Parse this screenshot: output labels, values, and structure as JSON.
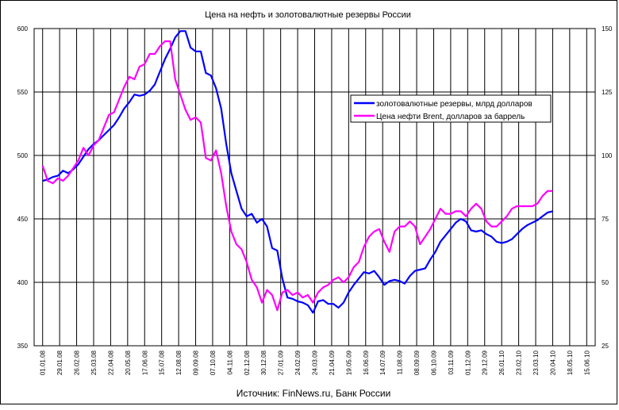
{
  "chart_data": {
    "type": "line",
    "title": "Цена на нефть и золотовалютные резервы России",
    "source": "Источник: FinNews.ru, Банк России",
    "x_labels": [
      "01.01.08",
      "29.01.08",
      "26.02.08",
      "25.03.08",
      "22.04.08",
      "20.05.08",
      "17.06.08",
      "15.07.08",
      "12.08.08",
      "09.09.08",
      "07.10.08",
      "04.11.08",
      "02.12.08",
      "30.12.08",
      "27.01.09",
      "24.02.09",
      "24.03.09",
      "21.04.09",
      "19.05.09",
      "16.06.09",
      "14.07.09",
      "11.08.09",
      "08.09.09",
      "06.10.09",
      "03.11.09",
      "01.12.09",
      "29.12.09",
      "26.01.10",
      "23.02.10",
      "23.03.10",
      "20.04.10",
      "18.05.10",
      "15.06.10"
    ],
    "ylim_left": [
      350,
      600
    ],
    "yticks_left": [
      350,
      400,
      450,
      500,
      550,
      600
    ],
    "ylim_right": [
      25,
      150
    ],
    "yticks_right": [
      25,
      50,
      75,
      100,
      125,
      150
    ],
    "grid": true,
    "legend_position": "right",
    "series": [
      {
        "name": "золотовалютные резервы, млрд долларов",
        "color": "#0000ff",
        "axis": "left",
        "x": [
          0,
          0.3,
          0.6,
          0.9,
          1.2,
          1.5,
          1.8,
          2.1,
          2.4,
          2.7,
          3.0,
          3.3,
          3.6,
          3.9,
          4.2,
          4.5,
          4.8,
          5.1,
          5.4,
          5.7,
          6.0,
          6.3,
          6.6,
          6.9,
          7.2,
          7.5,
          7.8,
          8.1,
          8.4,
          8.7,
          9.0,
          9.3,
          9.6,
          9.9,
          10.2,
          10.5,
          10.8,
          11.1,
          11.4,
          11.7,
          12.0,
          12.3,
          12.6,
          12.9,
          13.2,
          13.5,
          13.8,
          14.1,
          14.4,
          14.7,
          15.0,
          15.3,
          15.6,
          15.9,
          16.2,
          16.5,
          16.8,
          17.1,
          17.4,
          17.7,
          18.0,
          18.3,
          18.6,
          18.9,
          19.2,
          19.5,
          19.8,
          20.1,
          20.4,
          20.7,
          21.0,
          21.3,
          21.6,
          21.9,
          22.2,
          22.5,
          22.8,
          23.1,
          23.4,
          23.7,
          24.0,
          24.3,
          24.6,
          24.9,
          25.2,
          25.5,
          25.8,
          26.1,
          26.4,
          26.7,
          27.0,
          27.3,
          27.6,
          27.9,
          28.2,
          28.5,
          28.8,
          29.1,
          29.4,
          29.7,
          30.0
        ],
        "values": [
          480,
          481,
          483,
          484,
          488,
          486,
          489,
          493,
          499,
          505,
          509,
          512,
          516,
          520,
          524,
          530,
          537,
          542,
          548,
          547,
          548,
          551,
          556,
          566,
          576,
          584,
          593,
          598,
          598,
          585,
          582,
          582,
          565,
          563,
          553,
          537,
          509,
          486,
          472,
          458,
          452,
          454,
          447,
          450,
          444,
          427,
          425,
          403,
          388,
          387,
          385,
          384,
          382,
          376,
          385,
          386,
          383,
          383,
          380,
          384,
          392,
          398,
          403,
          408,
          407,
          409,
          404,
          398,
          401,
          402,
          401,
          399,
          405,
          409,
          410,
          411,
          418,
          424,
          432,
          437,
          442,
          447,
          450,
          448,
          441,
          440,
          441,
          438,
          436,
          432,
          431,
          432,
          434,
          438,
          442,
          445,
          447,
          449,
          452,
          455,
          456
        ]
      },
      {
        "name": "Цена нефти Brent, долларов за баррель",
        "color": "#ff00ff",
        "axis": "right",
        "x": [
          0,
          0.3,
          0.6,
          0.9,
          1.2,
          1.5,
          1.8,
          2.1,
          2.4,
          2.7,
          3.0,
          3.3,
          3.6,
          3.9,
          4.2,
          4.5,
          4.8,
          5.1,
          5.4,
          5.7,
          6.0,
          6.3,
          6.6,
          6.9,
          7.2,
          7.5,
          7.8,
          8.1,
          8.4,
          8.7,
          9.0,
          9.3,
          9.6,
          9.9,
          10.2,
          10.5,
          10.8,
          11.1,
          11.4,
          11.7,
          12.0,
          12.3,
          12.6,
          12.9,
          13.2,
          13.5,
          13.8,
          14.1,
          14.4,
          14.7,
          15.0,
          15.3,
          15.6,
          15.9,
          16.2,
          16.5,
          16.8,
          17.1,
          17.4,
          17.7,
          18.0,
          18.3,
          18.6,
          18.9,
          19.2,
          19.5,
          19.8,
          20.1,
          20.4,
          20.7,
          21.0,
          21.3,
          21.6,
          21.9,
          22.2,
          22.5,
          22.8,
          23.1,
          23.4,
          23.7,
          24.0,
          24.3,
          24.6,
          24.9,
          25.2,
          25.5,
          25.8,
          26.1,
          26.4,
          26.7,
          27.0,
          27.3,
          27.6,
          27.9,
          28.2,
          28.5,
          28.8,
          29.1,
          29.4,
          29.7,
          30.0
        ],
        "values": [
          96,
          90,
          89,
          91,
          90,
          92,
          95,
          98,
          103,
          100,
          104,
          106,
          111,
          116,
          117,
          122,
          127,
          131,
          130,
          135,
          136,
          140,
          140,
          143,
          145,
          145,
          130,
          124,
          118,
          114,
          115,
          113,
          99,
          98,
          102,
          93,
          80,
          70,
          65,
          63,
          58,
          51,
          48,
          42,
          47,
          45,
          39,
          46,
          47,
          45,
          46,
          44,
          45,
          42,
          46,
          48,
          49,
          51,
          52,
          50,
          52,
          56,
          58,
          64,
          68,
          70,
          71,
          66,
          62,
          70,
          72,
          72,
          74,
          72,
          65,
          68,
          71,
          75,
          79,
          77,
          77,
          78,
          78,
          76,
          79,
          81,
          79,
          74,
          72,
          72,
          74,
          76,
          79,
          80,
          80,
          80,
          80,
          81,
          84,
          86,
          86
        ]
      }
    ]
  }
}
